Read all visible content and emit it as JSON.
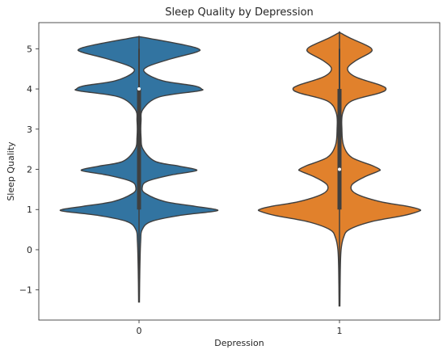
{
  "chart_data": {
    "type": "violin",
    "title": "Sleep Quality by Depression",
    "xlabel": "Depression",
    "ylabel": "Sleep Quality",
    "categories": [
      "0",
      "1"
    ],
    "ylim": [
      -1.75,
      5.65
    ],
    "yticks": [
      -1,
      0,
      1,
      2,
      3,
      4,
      5
    ],
    "ytick_labels": [
      "−1",
      "0",
      "1",
      "2",
      "3",
      "4",
      "5"
    ],
    "grid": false,
    "legend": "none",
    "series": [
      {
        "category": "0",
        "color": "#3274a1",
        "density_range": [
          -1.3,
          5.3
        ],
        "density": [
          [
            -1.3,
            0.005
          ],
          [
            -0.5,
            0.01
          ],
          [
            0.2,
            0.02
          ],
          [
            0.5,
            0.04
          ],
          [
            0.7,
            0.15
          ],
          [
            0.85,
            0.5
          ],
          [
            0.95,
            0.92
          ],
          [
            1.0,
            0.96
          ],
          [
            1.08,
            0.7
          ],
          [
            1.2,
            0.32
          ],
          [
            1.4,
            0.08
          ],
          [
            1.55,
            0.04
          ],
          [
            1.7,
            0.1
          ],
          [
            1.85,
            0.38
          ],
          [
            1.95,
            0.68
          ],
          [
            2.0,
            0.7
          ],
          [
            2.08,
            0.5
          ],
          [
            2.2,
            0.2
          ],
          [
            2.5,
            0.05
          ],
          [
            2.8,
            0.025
          ],
          [
            3.2,
            0.025
          ],
          [
            3.5,
            0.05
          ],
          [
            3.8,
            0.25
          ],
          [
            3.95,
            0.74
          ],
          [
            4.0,
            0.78
          ],
          [
            4.08,
            0.68
          ],
          [
            4.2,
            0.3
          ],
          [
            4.4,
            0.08
          ],
          [
            4.55,
            0.1
          ],
          [
            4.75,
            0.4
          ],
          [
            4.92,
            0.72
          ],
          [
            5.0,
            0.74
          ],
          [
            5.1,
            0.55
          ],
          [
            5.25,
            0.15
          ],
          [
            5.3,
            0.005
          ]
        ],
        "q1": 1.0,
        "median": 4.0,
        "q3": 4.0,
        "whisker_low": 1.0,
        "whisker_high": 5.0
      },
      {
        "category": "1",
        "color": "#e1812c",
        "density_range": [
          -1.4,
          5.4
        ],
        "density": [
          [
            -1.4,
            0.005
          ],
          [
            -0.5,
            0.01
          ],
          [
            0.0,
            0.02
          ],
          [
            0.3,
            0.05
          ],
          [
            0.5,
            0.12
          ],
          [
            0.7,
            0.4
          ],
          [
            0.85,
            0.8
          ],
          [
            0.95,
            0.98
          ],
          [
            1.0,
            1.0
          ],
          [
            1.08,
            0.85
          ],
          [
            1.2,
            0.5
          ],
          [
            1.4,
            0.2
          ],
          [
            1.6,
            0.15
          ],
          [
            1.8,
            0.3
          ],
          [
            1.95,
            0.48
          ],
          [
            2.0,
            0.5
          ],
          [
            2.1,
            0.4
          ],
          [
            2.3,
            0.15
          ],
          [
            2.6,
            0.05
          ],
          [
            3.0,
            0.03
          ],
          [
            3.4,
            0.04
          ],
          [
            3.7,
            0.15
          ],
          [
            3.9,
            0.5
          ],
          [
            4.0,
            0.58
          ],
          [
            4.1,
            0.5
          ],
          [
            4.3,
            0.2
          ],
          [
            4.5,
            0.1
          ],
          [
            4.7,
            0.2
          ],
          [
            4.9,
            0.38
          ],
          [
            5.0,
            0.4
          ],
          [
            5.1,
            0.32
          ],
          [
            5.25,
            0.15
          ],
          [
            5.4,
            0.005
          ]
        ],
        "q1": 1.0,
        "median": 2.0,
        "q3": 4.0,
        "whisker_low": 1.0,
        "whisker_high": 5.0
      }
    ]
  }
}
